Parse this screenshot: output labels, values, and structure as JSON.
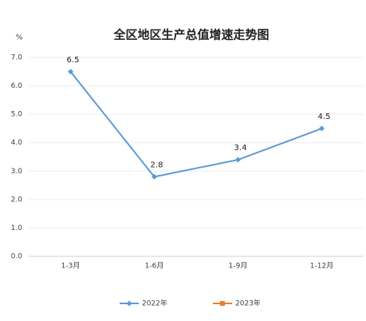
{
  "chart_data": {
    "type": "line",
    "title": "全区地区生产总值增速走势图",
    "ylabel": "%",
    "categories": [
      "1-3月",
      "1-6月",
      "1-9月",
      "1-12月"
    ],
    "series": [
      {
        "name": "2022年",
        "color": "#5b9bd5",
        "values": [
          6.5,
          2.8,
          3.4,
          4.5
        ]
      },
      {
        "name": "2023年",
        "color": "#ed7d31",
        "values": [
          null,
          null,
          null,
          null
        ]
      }
    ],
    "ylim": [
      0,
      7
    ],
    "yticks": [
      {
        "value": 0,
        "label": "0.0"
      },
      {
        "value": 1,
        "label": "1.0"
      },
      {
        "value": 2,
        "label": "2.0"
      },
      {
        "value": 3,
        "label": "3.0"
      },
      {
        "value": 4,
        "label": "4.0"
      },
      {
        "value": 5,
        "label": "5.0"
      },
      {
        "value": 6,
        "label": "6.0"
      },
      {
        "value": 7,
        "label": "7.0"
      }
    ],
    "grid": true,
    "legend": "bottom"
  }
}
